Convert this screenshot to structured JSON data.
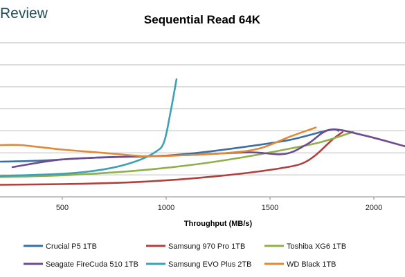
{
  "brand": {
    "text": "Review"
  },
  "chart_data": {
    "type": "line",
    "title": "Sequential Read 64K",
    "xlabel": "Throughput (MB/s)",
    "ylabel": "",
    "xlim": [
      200,
      2150
    ],
    "ylim": [
      0,
      7
    ],
    "xticks": [
      500,
      1000,
      1500,
      2000
    ],
    "yticks": [
      0,
      1,
      2,
      3,
      4,
      5,
      6,
      7
    ],
    "show_ytick_labels": false,
    "grid": "horizontal",
    "legend_position": "bottom",
    "series": [
      {
        "name": "Crucial P5 1TB",
        "color": "#3a6ea5",
        "points": [
          [
            200,
            1.6
          ],
          [
            400,
            1.65
          ],
          [
            700,
            1.8
          ],
          [
            950,
            1.85
          ],
          [
            1150,
            2.0
          ],
          [
            1400,
            2.3
          ],
          [
            1600,
            2.6
          ],
          [
            1790,
            3.05
          ],
          [
            1830,
            3.0
          ]
        ]
      },
      {
        "name": "Samsung 970 Pro 1TB",
        "color": "#b0403e",
        "points": [
          [
            200,
            0.55
          ],
          [
            500,
            0.58
          ],
          [
            800,
            0.65
          ],
          [
            1000,
            0.75
          ],
          [
            1200,
            0.9
          ],
          [
            1400,
            1.1
          ],
          [
            1550,
            1.3
          ],
          [
            1650,
            1.5
          ],
          [
            1720,
            1.9
          ],
          [
            1800,
            2.6
          ],
          [
            1850,
            2.95
          ]
        ]
      },
      {
        "name": "Toshiba XG6 1TB",
        "color": "#8db04a",
        "points": [
          [
            200,
            0.9
          ],
          [
            500,
            0.98
          ],
          [
            800,
            1.15
          ],
          [
            1000,
            1.32
          ],
          [
            1200,
            1.55
          ],
          [
            1400,
            1.85
          ],
          [
            1600,
            2.2
          ],
          [
            1750,
            2.5
          ],
          [
            1900,
            2.95
          ]
        ]
      },
      {
        "name": "Seagate FireCuda 510 1TB",
        "color": "#6e4a8e",
        "points": [
          [
            260,
            1.35
          ],
          [
            500,
            1.7
          ],
          [
            800,
            1.82
          ],
          [
            1100,
            1.9
          ],
          [
            1400,
            2.02
          ],
          [
            1570,
            1.95
          ],
          [
            1680,
            2.4
          ],
          [
            1790,
            3.05
          ],
          [
            1950,
            2.8
          ],
          [
            2150,
            2.3
          ]
        ]
      },
      {
        "name": "Samsung EVO Plus 2TB",
        "color": "#3da1b3",
        "points": [
          [
            200,
            0.95
          ],
          [
            500,
            1.05
          ],
          [
            700,
            1.25
          ],
          [
            850,
            1.6
          ],
          [
            950,
            2.05
          ],
          [
            990,
            2.5
          ],
          [
            1020,
            3.8
          ],
          [
            1050,
            5.35
          ]
        ]
      },
      {
        "name": "WD Black 1TB",
        "color": "#e08a35",
        "points": [
          [
            200,
            2.35
          ],
          [
            300,
            2.35
          ],
          [
            500,
            2.15
          ],
          [
            700,
            2.0
          ],
          [
            900,
            1.85
          ],
          [
            1100,
            1.9
          ],
          [
            1300,
            2.0
          ],
          [
            1450,
            2.2
          ],
          [
            1600,
            2.75
          ],
          [
            1720,
            3.15
          ]
        ]
      }
    ]
  }
}
